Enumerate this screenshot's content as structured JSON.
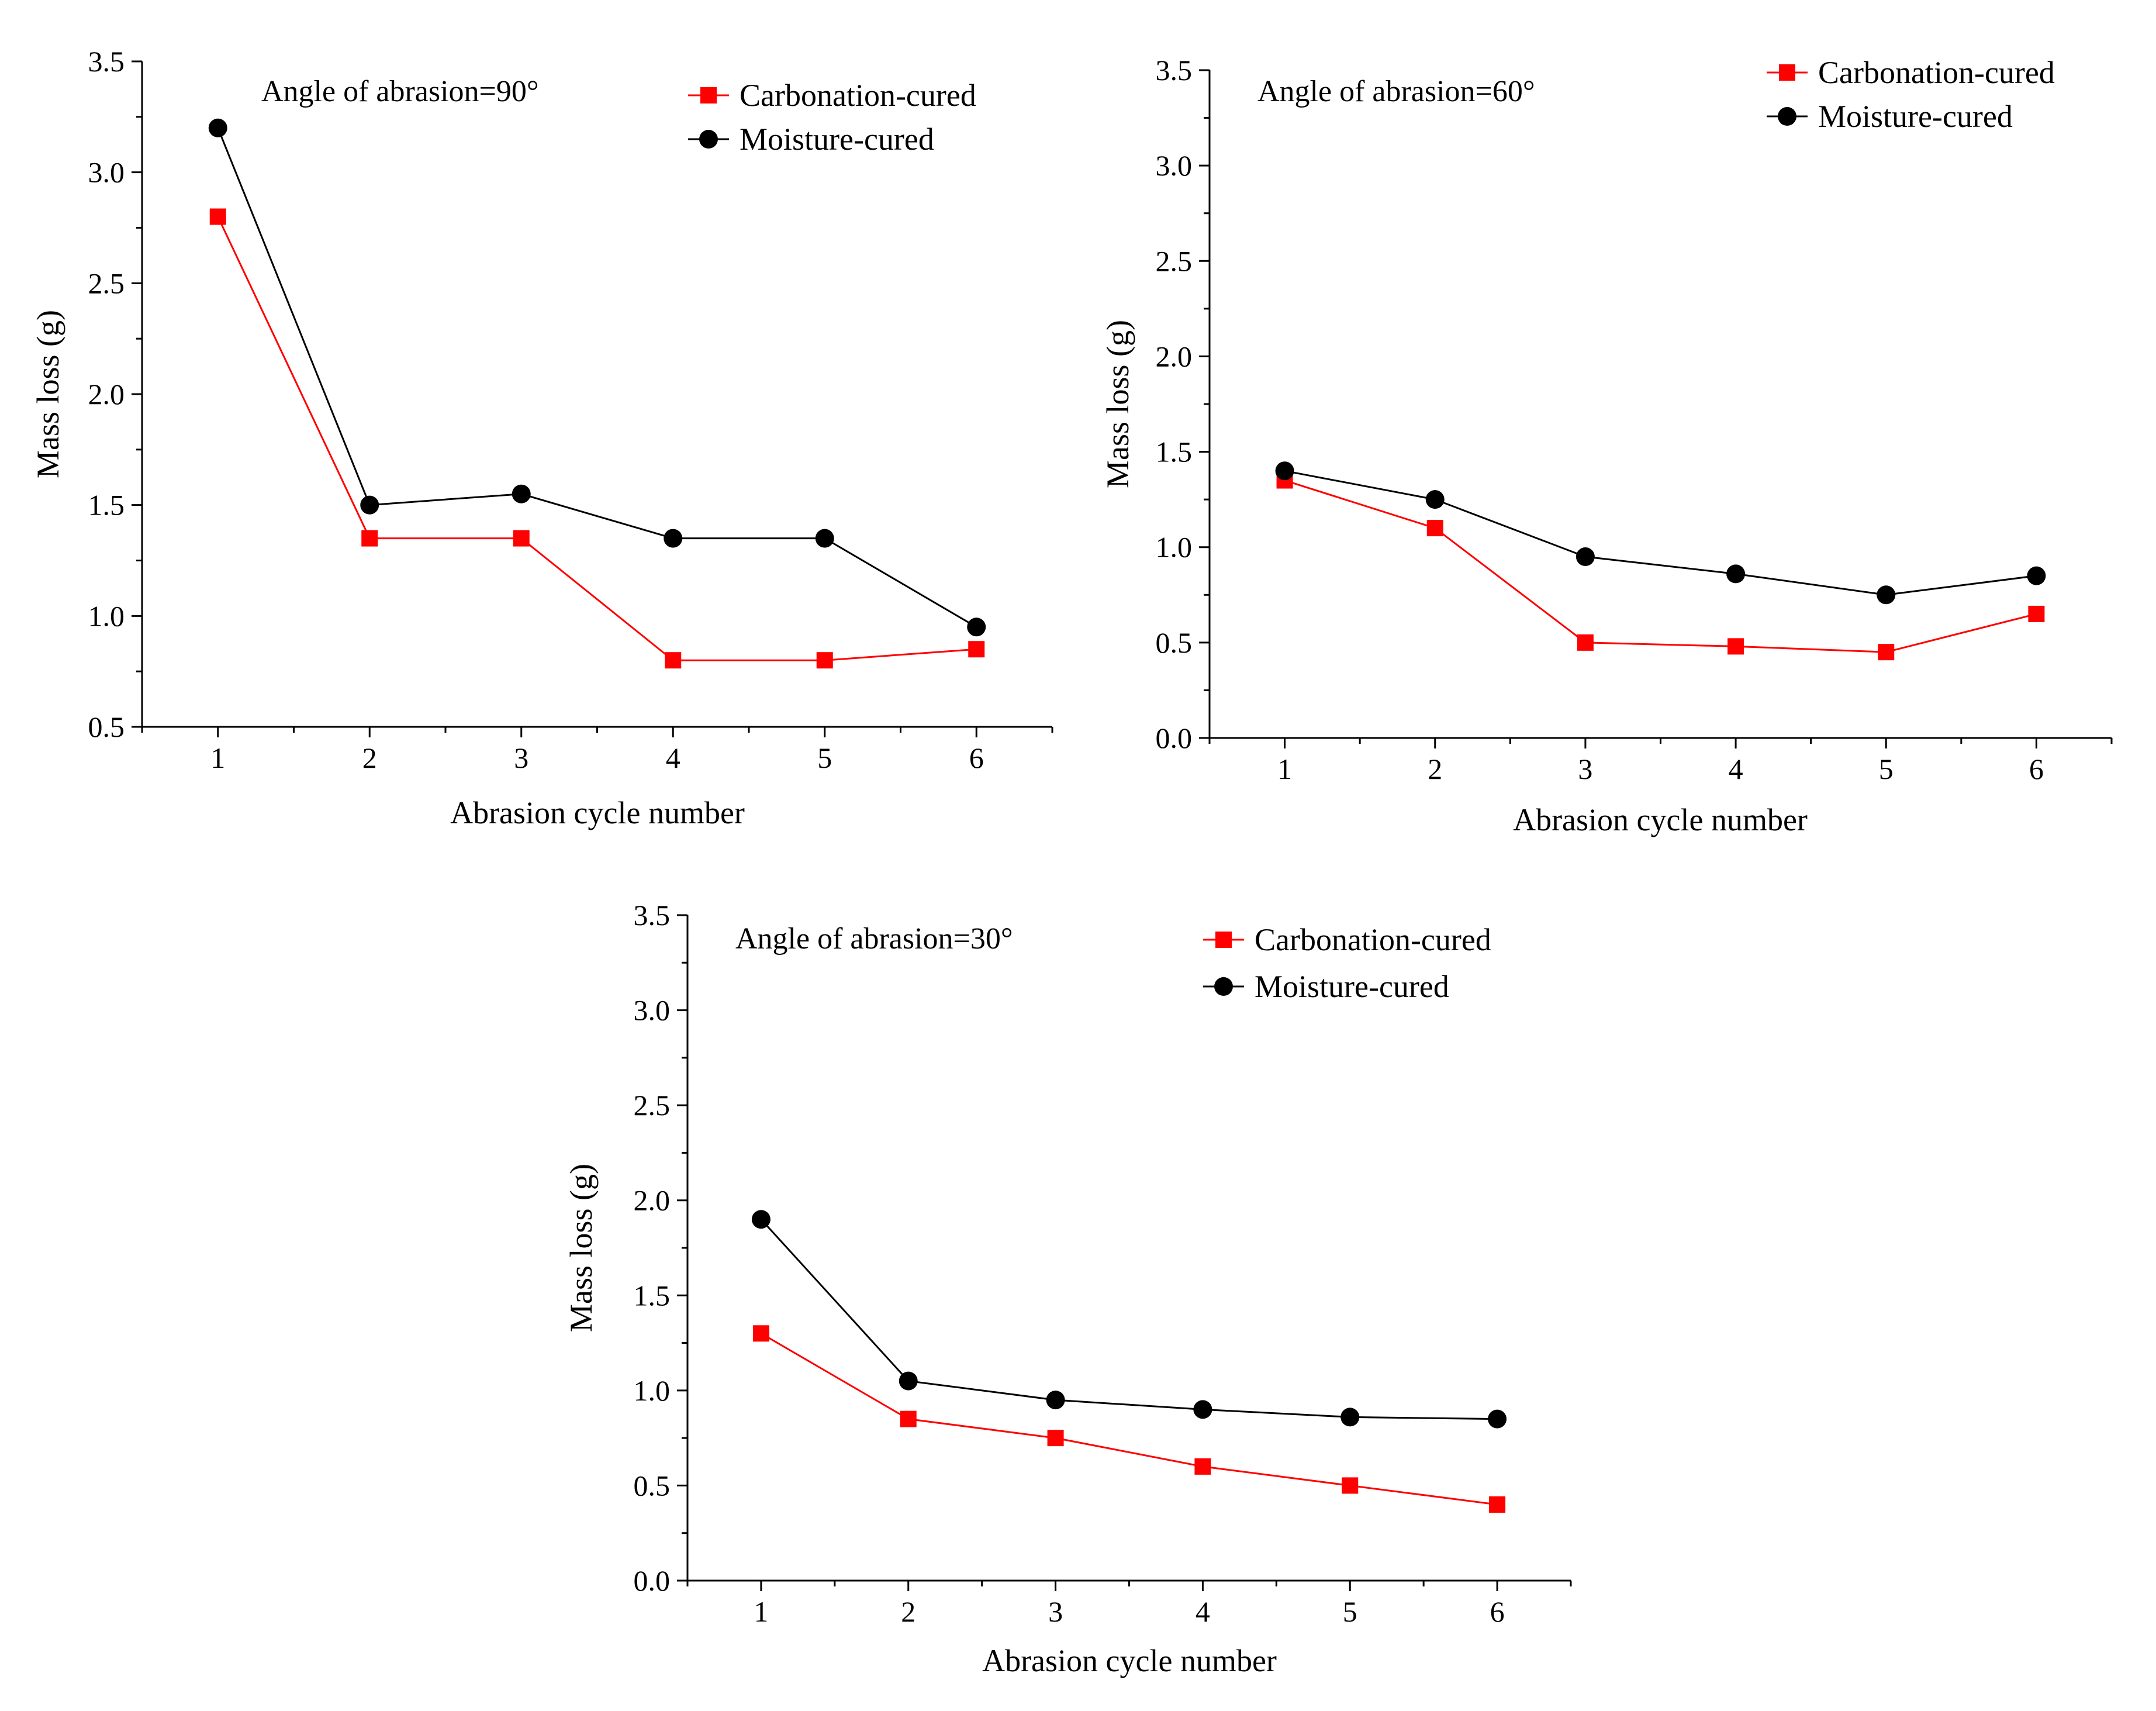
{
  "colors": {
    "carbonation": "#ff0000",
    "moisture": "#000000",
    "axis": "#000000"
  },
  "chart_data": [
    {
      "type": "line",
      "annotation": "Angle of abrasion=90°",
      "xlabel": "Abrasion cycle number",
      "ylabel": "Mass loss (g)",
      "x": [
        1,
        2,
        3,
        4,
        5,
        6
      ],
      "xlim": [
        0.5,
        6.5
      ],
      "ylim": [
        0.5,
        3.5
      ],
      "yticks": [
        0.5,
        1.0,
        1.5,
        2.0,
        2.5,
        3.0,
        3.5
      ],
      "ytick_labels": [
        "0.5",
        "1.0",
        "1.5",
        "2.0",
        "2.5",
        "3.0",
        "3.5"
      ],
      "xtick_labels": [
        "1",
        "2",
        "3",
        "4",
        "5",
        "6"
      ],
      "legend_position": "top-right",
      "series": [
        {
          "name": "Carbonation-cured",
          "marker": "square",
          "values": [
            2.8,
            1.35,
            1.35,
            0.8,
            0.8,
            0.85
          ]
        },
        {
          "name": "Moisture-cured",
          "marker": "circle",
          "values": [
            3.2,
            1.5,
            1.55,
            1.35,
            1.35,
            0.95
          ]
        }
      ]
    },
    {
      "type": "line",
      "annotation": "Angle of abrasion=60°",
      "xlabel": "Abrasion cycle number",
      "ylabel": "Mass loss (g)",
      "x": [
        1,
        2,
        3,
        4,
        5,
        6
      ],
      "xlim": [
        0.5,
        6.5
      ],
      "ylim": [
        0.0,
        3.5
      ],
      "yticks": [
        0.0,
        0.5,
        1.0,
        1.5,
        2.0,
        2.5,
        3.0,
        3.5
      ],
      "ytick_labels": [
        "0.0",
        "0.5",
        "1.0",
        "1.5",
        "2.0",
        "2.5",
        "3.0",
        "3.5"
      ],
      "xtick_labels": [
        "1",
        "2",
        "3",
        "4",
        "5",
        "6"
      ],
      "legend_position": "top-right",
      "series": [
        {
          "name": "Carbonation-cured",
          "marker": "square",
          "values": [
            1.35,
            1.1,
            0.5,
            0.48,
            0.45,
            0.65
          ]
        },
        {
          "name": "Moisture-cured",
          "marker": "circle",
          "values": [
            1.4,
            1.25,
            0.95,
            0.86,
            0.75,
            0.85
          ]
        }
      ]
    },
    {
      "type": "line",
      "annotation": "Angle of abrasion=30°",
      "xlabel": "Abrasion cycle number",
      "ylabel": "Mass loss (g)",
      "x": [
        1,
        2,
        3,
        4,
        5,
        6
      ],
      "xlim": [
        0.5,
        6.5
      ],
      "ylim": [
        0.0,
        3.5
      ],
      "yticks": [
        0.0,
        0.5,
        1.0,
        1.5,
        2.0,
        2.5,
        3.0,
        3.5
      ],
      "ytick_labels": [
        "0.0",
        "0.5",
        "1.0",
        "1.5",
        "2.0",
        "2.5",
        "3.0",
        "3.5"
      ],
      "xtick_labels": [
        "1",
        "2",
        "3",
        "4",
        "5",
        "6"
      ],
      "legend_position": "top-right",
      "series": [
        {
          "name": "Carbonation-cured",
          "marker": "square",
          "values": [
            1.3,
            0.85,
            0.75,
            0.6,
            0.5,
            0.4
          ]
        },
        {
          "name": "Moisture-cured",
          "marker": "circle",
          "values": [
            1.9,
            1.05,
            0.95,
            0.9,
            0.86,
            0.85
          ]
        }
      ]
    }
  ]
}
